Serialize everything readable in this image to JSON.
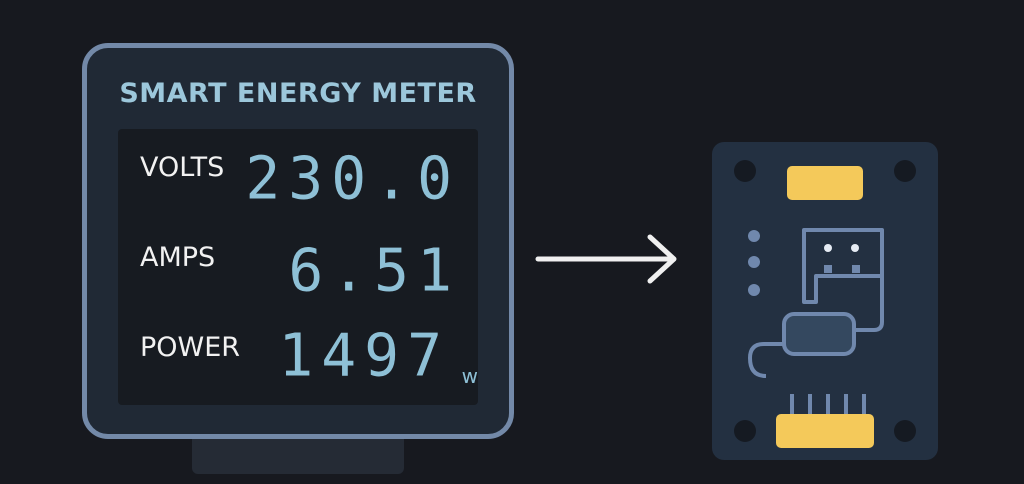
{
  "meter": {
    "title": "SMART ENERGY METER",
    "rows": [
      {
        "label": "VOLTS",
        "value": "230.0"
      },
      {
        "label": "AMPS",
        "value": "6.51"
      },
      {
        "label": "POWER",
        "value": "1497",
        "unit": "w"
      }
    ]
  },
  "colors": {
    "background": "#17191f",
    "meter_border": "#7389a8",
    "display_text": "#8ec0d6",
    "title_text": "#9cc7db",
    "board": "#233041",
    "connector": "#f4c95a",
    "trace": "#7088ad"
  },
  "icons": [
    "arrow-right-icon",
    "circuit-board-icon"
  ]
}
